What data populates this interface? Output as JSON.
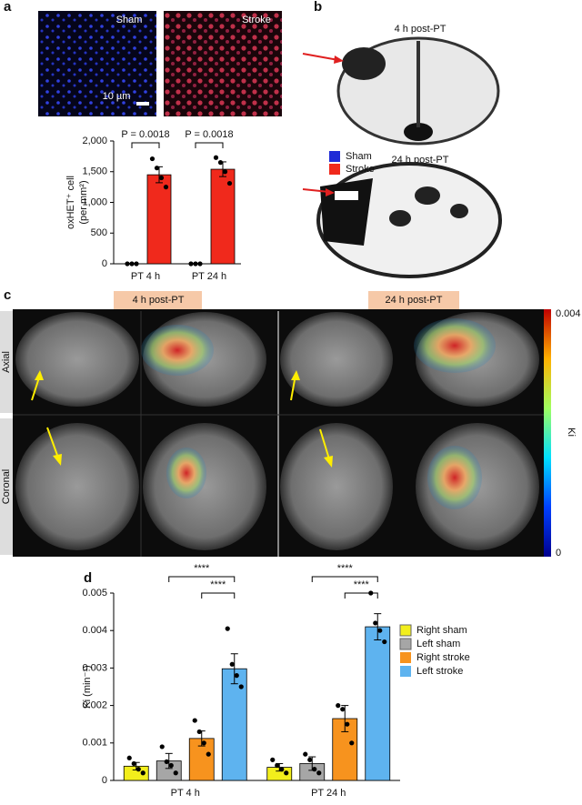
{
  "panel_labels": [
    "a",
    "b",
    "c",
    "d"
  ],
  "panel_a_images": {
    "left": "Sham",
    "right": "Stroke",
    "scale_bar": "10 µm"
  },
  "panel_b": {
    "top": "4 h post-PT",
    "bottom": "24 h post-PT"
  },
  "panel_c": {
    "headers": [
      "4 h post-PT",
      "24 h post-PT"
    ],
    "rows": [
      "Axial",
      "Coronal"
    ],
    "colorbar": {
      "label": "Ki",
      "max": 0.004,
      "min": 0
    }
  },
  "chart_data": [
    {
      "type": "bar",
      "categories": [
        "PT 4 h",
        "PT 24 h"
      ],
      "ylabel": [
        "oxHET⁺ cell",
        "(per mm²)"
      ],
      "ylim": [
        0,
        2000
      ],
      "yticks": [
        0,
        500,
        {
          "value": 1000,
          "label": "1,000"
        },
        {
          "value": 1500,
          "label": "1,500"
        },
        {
          "value": 2000,
          "label": "2,000"
        }
      ],
      "series": [
        {
          "name": "Sham",
          "color": "#1f2bd6",
          "values": [
            0,
            0
          ],
          "errors": [
            0,
            0
          ],
          "points": [
            [
              0,
              0,
              0
            ],
            [
              0,
              0,
              0
            ]
          ]
        },
        {
          "name": "Stroke",
          "color": "#f0291c",
          "values": [
            1450,
            1540
          ],
          "errors": [
            130,
            120
          ],
          "points": [
            [
              1710,
              1560,
              1400,
              1250
            ],
            [
              1730,
              1650,
              1500,
              1310
            ]
          ]
        }
      ],
      "annotations": [
        "P = 0.0018",
        "P = 0.0018"
      ],
      "legend": "right",
      "grid": false
    },
    {
      "type": "bar",
      "categories": [
        "PT 4 h",
        "PT 24 h"
      ],
      "ylabel": [
        "Ki (min⁻¹)"
      ],
      "ylim": [
        0,
        0.005
      ],
      "yticks": [
        0,
        0.001,
        0.002,
        0.003,
        0.004,
        0.005
      ],
      "series": [
        {
          "name": "Right sham",
          "color": "#f2ee1c",
          "values": [
            0.00038,
            0.00035
          ],
          "errors": [
            0.0001,
            0.0001
          ],
          "points": [
            [
              0.0006,
              0.00045,
              0.0003,
              0.0002
            ],
            [
              0.00055,
              0.0004,
              0.0003,
              0.0002
            ]
          ]
        },
        {
          "name": "Left sham",
          "color": "#a6a6a6",
          "values": [
            0.00052,
            0.00045
          ],
          "errors": [
            0.0002,
            0.00018
          ],
          "points": [
            [
              0.0009,
              0.0005,
              0.0004,
              0.0002
            ],
            [
              0.0007,
              0.00055,
              0.0003,
              0.0002
            ]
          ]
        },
        {
          "name": "Right stroke",
          "color": "#f7931e",
          "values": [
            0.00112,
            0.00165
          ],
          "errors": [
            0.0002,
            0.00035
          ],
          "points": [
            [
              0.0016,
              0.0013,
              0.001,
              0.0007
            ],
            [
              0.002,
              0.0019,
              0.0015,
              0.001
            ]
          ]
        },
        {
          "name": "Left stroke",
          "color": "#5eb3ef",
          "values": [
            0.00298,
            0.0041
          ],
          "errors": [
            0.0004,
            0.00035
          ],
          "points": [
            [
              0.00405,
              0.0031,
              0.0028,
              0.0025
            ],
            [
              0.005,
              0.0042,
              0.004,
              0.0037
            ]
          ]
        }
      ],
      "annotations": [
        "****",
        "****",
        "****",
        "****"
      ],
      "legend": "right",
      "grid": false
    }
  ]
}
